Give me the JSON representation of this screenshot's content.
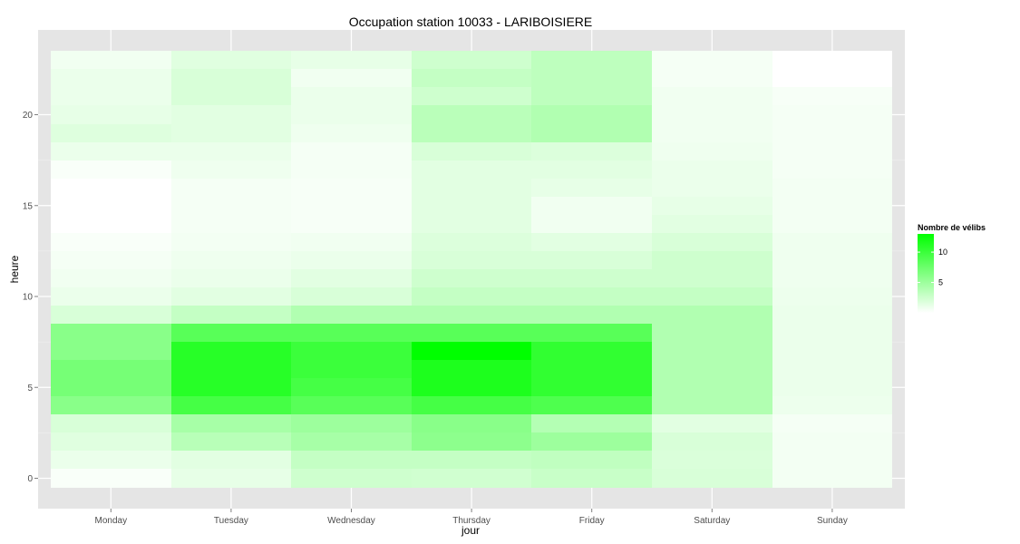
{
  "chart_data": {
    "type": "heatmap",
    "title": "Occupation station 10033 - LARIBOISIERE",
    "xlabel": "jour",
    "ylabel": "heure",
    "x_categories": [
      "Monday",
      "Tuesday",
      "Wednesday",
      "Thursday",
      "Friday",
      "Saturday",
      "Sunday"
    ],
    "y_values": [
      0,
      1,
      2,
      3,
      4,
      5,
      6,
      7,
      8,
      9,
      10,
      11,
      12,
      13,
      14,
      15,
      16,
      17,
      18,
      19,
      20,
      21,
      22,
      23
    ],
    "ylim": [
      -0.5,
      23.5
    ],
    "y_ticks": [
      0,
      5,
      10,
      15,
      20
    ],
    "colorscale": {
      "low": "#ffffff",
      "high": "#00ff00",
      "min": 0,
      "max": 13
    },
    "legend": {
      "title": "Nombre de vélibs",
      "ticks": [
        5,
        10
      ],
      "position": "right"
    },
    "grid": true,
    "panel_background": "#e5e5e5",
    "values": [
      [
        0.3,
        1.2,
        2.5,
        2.4,
        2.8,
        2.0,
        0.6
      ],
      [
        1.0,
        1.5,
        3.0,
        3.0,
        3.2,
        1.9,
        0.6
      ],
      [
        1.6,
        3.6,
        4.5,
        5.8,
        5.0,
        2.0,
        0.6
      ],
      [
        2.0,
        4.5,
        5.0,
        6.0,
        3.8,
        1.5,
        0.5
      ],
      [
        6.0,
        9.5,
        8.5,
        9.5,
        9.0,
        4.0,
        0.9
      ],
      [
        7.0,
        11.0,
        9.5,
        11.5,
        10.5,
        4.0,
        1.0
      ],
      [
        7.0,
        11.0,
        10.0,
        11.5,
        10.5,
        4.0,
        1.0
      ],
      [
        6.0,
        11.0,
        10.0,
        13.0,
        10.5,
        4.0,
        1.0
      ],
      [
        6.0,
        8.5,
        8.5,
        8.5,
        8.5,
        4.0,
        1.0
      ],
      [
        2.0,
        3.0,
        4.0,
        4.0,
        4.0,
        4.0,
        1.0
      ],
      [
        1.0,
        1.5,
        2.0,
        3.0,
        3.0,
        3.0,
        0.9
      ],
      [
        0.7,
        1.0,
        1.5,
        2.5,
        2.5,
        2.5,
        0.8
      ],
      [
        0.5,
        0.8,
        1.0,
        2.0,
        2.0,
        2.5,
        0.8
      ],
      [
        0.3,
        0.6,
        0.7,
        1.8,
        1.5,
        2.0,
        0.8
      ],
      [
        0.0,
        0.5,
        0.4,
        1.5,
        0.7,
        1.5,
        0.6
      ],
      [
        0.0,
        0.5,
        0.4,
        1.5,
        0.7,
        1.2,
        0.6
      ],
      [
        0.0,
        0.5,
        0.4,
        1.5,
        1.2,
        1.0,
        0.6
      ],
      [
        0.3,
        0.8,
        0.5,
        1.5,
        1.5,
        1.0,
        0.5
      ],
      [
        1.0,
        1.0,
        0.5,
        2.0,
        1.8,
        0.8,
        0.5
      ],
      [
        1.7,
        1.5,
        0.8,
        3.5,
        4.0,
        0.7,
        0.5
      ],
      [
        1.2,
        1.5,
        1.0,
        3.5,
        4.0,
        0.7,
        0.5
      ],
      [
        1.0,
        2.0,
        1.0,
        2.5,
        3.3,
        0.7,
        0.4
      ],
      [
        1.0,
        2.0,
        0.7,
        3.0,
        3.3,
        0.5,
        0.0
      ],
      [
        0.7,
        1.6,
        1.2,
        2.5,
        3.3,
        0.5,
        0.0
      ]
    ]
  }
}
